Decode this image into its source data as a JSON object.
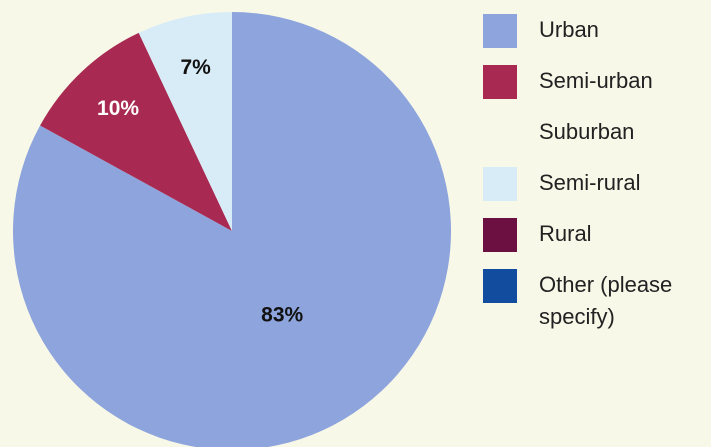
{
  "chart_data": {
    "type": "pie",
    "categories": [
      "Urban",
      "Semi-urban",
      "Suburban",
      "Semi-rural",
      "Rural",
      "Other (please specify)"
    ],
    "values": [
      83,
      10,
      0,
      7,
      0,
      0
    ],
    "value_labels": [
      "83%",
      "10%",
      null,
      "7%",
      null,
      null
    ],
    "colors": [
      "#8ea4dc",
      "#a82a52",
      "#f7f8e8",
      "#d8ecf8",
      "#6b1040",
      "#124c9e"
    ]
  }
}
